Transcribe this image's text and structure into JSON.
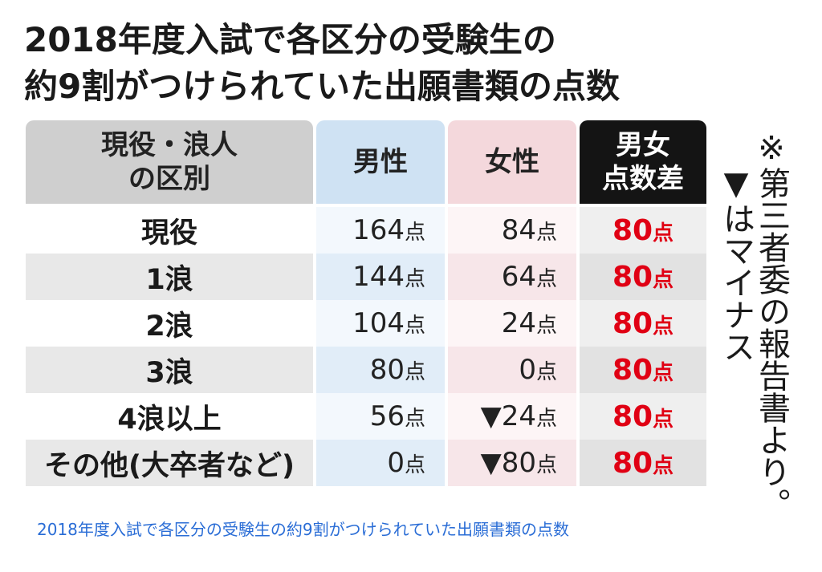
{
  "figure": {
    "title_line1": "2018年度入試で各区分の受験生の",
    "title_line2": "約9割がつけられていた出願書類の点数",
    "headers": {
      "category_line1": "現役・浪人",
      "category_line2": "の区別",
      "male": "男性",
      "female": "女性",
      "diff_line1": "男女",
      "diff_line2": "点数差"
    },
    "unit": "点",
    "rows": [
      {
        "category": "現役",
        "male": "164",
        "female": "84",
        "diff": "80"
      },
      {
        "category": "1浪",
        "male": "144",
        "female": "64",
        "diff": "80"
      },
      {
        "category": "2浪",
        "male": "104",
        "female": "24",
        "diff": "80"
      },
      {
        "category": "3浪",
        "male": "80",
        "female": "0",
        "diff": "80"
      },
      {
        "category": "4浪以上",
        "male": "56",
        "female": "▼24",
        "diff": "80"
      },
      {
        "category": "その他(大卒者など)",
        "male": "0",
        "female": "▼80",
        "diff": "80"
      }
    ],
    "note_line1": "※第三者委の報告書より。",
    "note_line2": "▼はマイナス"
  },
  "caption": "2018年度入試で各区分の受験生の約9割がつけられていた出願書類の点数",
  "colors": {
    "diff_red": "#e00014",
    "header_black": "#141414",
    "male_blue": "#cfe2f3",
    "female_pink": "#f4d8dc",
    "caption_blue": "#2a6dd6"
  }
}
